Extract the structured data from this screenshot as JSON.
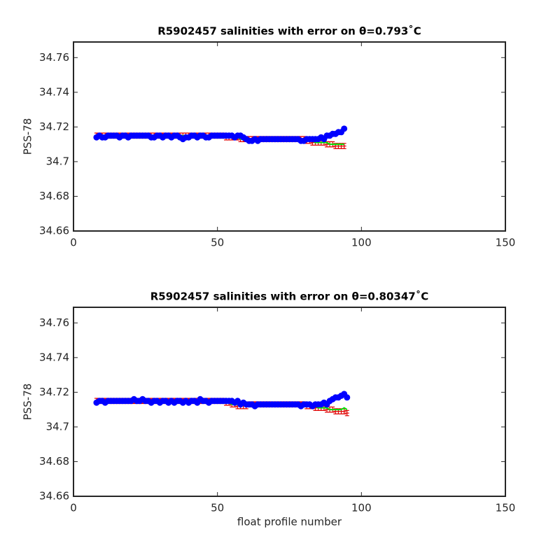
{
  "chart_data": [
    {
      "type": "line",
      "title": "R5902457 salinities with error on θ=0.793˚C",
      "y_label": "PSS-78",
      "x": [
        8,
        9,
        10,
        11,
        12,
        13,
        14,
        15,
        16,
        17,
        18,
        19,
        20,
        21,
        22,
        23,
        24,
        25,
        26,
        27,
        28,
        29,
        30,
        31,
        32,
        33,
        34,
        35,
        36,
        37,
        38,
        39,
        40,
        41,
        42,
        43,
        44,
        45,
        46,
        47,
        48,
        49,
        50,
        51,
        52,
        53,
        54,
        55,
        56,
        57,
        58,
        59,
        60,
        61,
        62,
        63,
        64,
        65,
        66,
        67,
        68,
        69,
        70,
        71,
        72,
        73,
        74,
        75,
        76,
        77,
        78,
        79,
        80,
        81,
        82,
        83,
        84,
        85,
        86,
        87,
        88,
        89,
        90,
        91,
        92,
        93,
        94
      ],
      "xlim": [
        0,
        150
      ],
      "xticks": [
        0,
        50,
        100,
        150
      ],
      "ylim": [
        34.66,
        34.769
      ],
      "yticks": [
        34.66,
        34.68,
        34.7,
        34.72,
        34.74,
        34.76
      ],
      "series": [
        {
          "style": "errorbar",
          "color": "#e00000",
          "error": 0.0015,
          "values": [
            34.715,
            34.715,
            34.715,
            34.715,
            34.715,
            34.715,
            34.715,
            34.715,
            34.715,
            34.715,
            34.715,
            34.715,
            34.715,
            34.715,
            34.715,
            34.715,
            34.715,
            34.715,
            34.715,
            34.715,
            34.715,
            34.715,
            34.715,
            34.715,
            34.715,
            34.715,
            34.715,
            34.715,
            34.715,
            34.715,
            34.715,
            34.715,
            34.715,
            34.715,
            34.715,
            34.715,
            34.715,
            34.715,
            34.715,
            34.715,
            34.715,
            34.715,
            34.715,
            34.715,
            34.715,
            34.714,
            34.714,
            34.714,
            34.714,
            34.714,
            34.713,
            34.713,
            34.713,
            34.713,
            34.713,
            34.713,
            34.713,
            34.713,
            34.713,
            34.713,
            34.713,
            34.713,
            34.713,
            34.713,
            34.713,
            34.713,
            34.713,
            34.713,
            34.713,
            34.713,
            34.713,
            34.713,
            34.713,
            34.712,
            34.712,
            34.711,
            34.711,
            34.711,
            34.711,
            34.711,
            34.71,
            34.71,
            34.71,
            34.709,
            34.709,
            34.709,
            34.709
          ]
        },
        {
          "style": "line",
          "color": "#00e000",
          "values": [
            34.715,
            34.715,
            34.715,
            34.715,
            34.715,
            34.715,
            34.715,
            34.715,
            34.715,
            34.715,
            34.715,
            34.715,
            34.715,
            34.715,
            34.715,
            34.715,
            34.715,
            34.715,
            34.715,
            34.715,
            34.715,
            34.715,
            34.715,
            34.715,
            34.715,
            34.715,
            34.715,
            34.715,
            34.715,
            34.715,
            34.715,
            34.715,
            34.715,
            34.715,
            34.715,
            34.715,
            34.715,
            34.715,
            34.715,
            34.715,
            34.715,
            34.715,
            34.715,
            34.715,
            34.715,
            34.714,
            34.714,
            34.714,
            34.714,
            34.714,
            34.713,
            34.713,
            34.713,
            34.713,
            34.713,
            34.713,
            34.713,
            34.713,
            34.713,
            34.713,
            34.713,
            34.713,
            34.713,
            34.713,
            34.713,
            34.713,
            34.713,
            34.713,
            34.713,
            34.713,
            34.713,
            34.713,
            34.713,
            34.712,
            34.712,
            34.712,
            34.711,
            34.711,
            34.711,
            34.711,
            34.711,
            34.71,
            34.71,
            34.71,
            34.71,
            34.71,
            34.71
          ]
        },
        {
          "style": "marker",
          "color": "#0000ff",
          "values": [
            34.714,
            34.715,
            34.714,
            34.714,
            34.715,
            34.715,
            34.715,
            34.715,
            34.714,
            34.715,
            34.715,
            34.714,
            34.715,
            34.715,
            34.715,
            34.715,
            34.715,
            34.715,
            34.715,
            34.714,
            34.714,
            34.715,
            34.715,
            34.714,
            34.715,
            34.715,
            34.714,
            34.715,
            34.715,
            34.714,
            34.713,
            34.714,
            34.714,
            34.715,
            34.715,
            34.714,
            34.715,
            34.715,
            34.714,
            34.714,
            34.715,
            34.715,
            34.715,
            34.715,
            34.715,
            34.715,
            34.715,
            34.715,
            34.714,
            34.715,
            34.715,
            34.714,
            34.713,
            34.712,
            34.712,
            34.713,
            34.712,
            34.713,
            34.713,
            34.713,
            34.713,
            34.713,
            34.713,
            34.713,
            34.713,
            34.713,
            34.713,
            34.713,
            34.713,
            34.713,
            34.713,
            34.712,
            34.712,
            34.713,
            34.713,
            34.713,
            34.713,
            34.713,
            34.714,
            34.713,
            34.715,
            34.715,
            34.716,
            34.716,
            34.717,
            34.717,
            34.719
          ]
        }
      ]
    },
    {
      "type": "line",
      "title": "R5902457 salinities with error on θ=0.80347˚C",
      "y_label": "PSS-78",
      "x_label": "float profile number",
      "x": [
        8,
        9,
        10,
        11,
        12,
        13,
        14,
        15,
        16,
        17,
        18,
        19,
        20,
        21,
        22,
        23,
        24,
        25,
        26,
        27,
        28,
        29,
        30,
        31,
        32,
        33,
        34,
        35,
        36,
        37,
        38,
        39,
        40,
        41,
        42,
        43,
        44,
        45,
        46,
        47,
        48,
        49,
        50,
        51,
        52,
        53,
        54,
        55,
        56,
        57,
        58,
        59,
        60,
        61,
        62,
        63,
        64,
        65,
        66,
        67,
        68,
        69,
        70,
        71,
        72,
        73,
        74,
        75,
        76,
        77,
        78,
        79,
        80,
        81,
        82,
        83,
        84,
        85,
        86,
        87,
        88,
        89,
        90,
        91,
        92,
        93,
        94,
        95
      ],
      "xlim": [
        0,
        150
      ],
      "xticks": [
        0,
        50,
        100,
        150
      ],
      "ylim": [
        34.66,
        34.769
      ],
      "yticks": [
        34.66,
        34.68,
        34.7,
        34.72,
        34.74,
        34.76
      ],
      "series": [
        {
          "style": "errorbar",
          "color": "#e00000",
          "error": 0.0015,
          "values": [
            34.715,
            34.715,
            34.715,
            34.715,
            34.715,
            34.715,
            34.715,
            34.715,
            34.715,
            34.715,
            34.715,
            34.715,
            34.715,
            34.715,
            34.715,
            34.715,
            34.715,
            34.715,
            34.715,
            34.715,
            34.715,
            34.715,
            34.715,
            34.715,
            34.715,
            34.715,
            34.715,
            34.715,
            34.715,
            34.715,
            34.715,
            34.715,
            34.715,
            34.715,
            34.715,
            34.715,
            34.715,
            34.715,
            34.715,
            34.715,
            34.715,
            34.715,
            34.715,
            34.715,
            34.715,
            34.714,
            34.714,
            34.713,
            34.713,
            34.712,
            34.712,
            34.712,
            34.712,
            34.713,
            34.713,
            34.713,
            34.713,
            34.713,
            34.713,
            34.713,
            34.713,
            34.713,
            34.713,
            34.713,
            34.713,
            34.713,
            34.713,
            34.713,
            34.713,
            34.713,
            34.713,
            34.713,
            34.713,
            34.712,
            34.712,
            34.712,
            34.711,
            34.711,
            34.711,
            34.711,
            34.71,
            34.71,
            34.71,
            34.709,
            34.709,
            34.709,
            34.709,
            34.708
          ]
        },
        {
          "style": "line",
          "color": "#00e000",
          "values": [
            34.715,
            34.715,
            34.715,
            34.715,
            34.715,
            34.715,
            34.715,
            34.715,
            34.715,
            34.715,
            34.715,
            34.715,
            34.715,
            34.715,
            34.715,
            34.715,
            34.715,
            34.715,
            34.715,
            34.715,
            34.715,
            34.715,
            34.715,
            34.715,
            34.715,
            34.715,
            34.715,
            34.715,
            34.715,
            34.715,
            34.715,
            34.715,
            34.715,
            34.715,
            34.715,
            34.715,
            34.715,
            34.715,
            34.715,
            34.715,
            34.715,
            34.715,
            34.715,
            34.715,
            34.715,
            34.714,
            34.714,
            34.713,
            34.713,
            34.713,
            34.713,
            34.713,
            34.713,
            34.713,
            34.713,
            34.713,
            34.713,
            34.713,
            34.713,
            34.713,
            34.713,
            34.713,
            34.713,
            34.713,
            34.713,
            34.713,
            34.713,
            34.713,
            34.713,
            34.713,
            34.713,
            34.713,
            34.713,
            34.712,
            34.712,
            34.712,
            34.712,
            34.711,
            34.711,
            34.711,
            34.711,
            34.71,
            34.71,
            34.71,
            34.71,
            34.71,
            34.711,
            34.71
          ]
        },
        {
          "style": "marker",
          "color": "#0000ff",
          "values": [
            34.714,
            34.715,
            34.715,
            34.714,
            34.715,
            34.715,
            34.715,
            34.715,
            34.715,
            34.715,
            34.715,
            34.715,
            34.715,
            34.716,
            34.715,
            34.715,
            34.716,
            34.715,
            34.715,
            34.714,
            34.715,
            34.715,
            34.714,
            34.715,
            34.715,
            34.714,
            34.715,
            34.714,
            34.715,
            34.715,
            34.714,
            34.715,
            34.714,
            34.715,
            34.715,
            34.714,
            34.716,
            34.715,
            34.715,
            34.714,
            34.715,
            34.715,
            34.715,
            34.715,
            34.715,
            34.715,
            34.715,
            34.715,
            34.714,
            34.715,
            34.713,
            34.714,
            34.713,
            34.713,
            34.713,
            34.712,
            34.713,
            34.713,
            34.713,
            34.713,
            34.713,
            34.713,
            34.713,
            34.713,
            34.713,
            34.713,
            34.713,
            34.713,
            34.713,
            34.713,
            34.713,
            34.712,
            34.713,
            34.713,
            34.713,
            34.712,
            34.713,
            34.713,
            34.713,
            34.714,
            34.713,
            34.715,
            34.716,
            34.717,
            34.717,
            34.718,
            34.719,
            34.717
          ]
        }
      ]
    }
  ]
}
